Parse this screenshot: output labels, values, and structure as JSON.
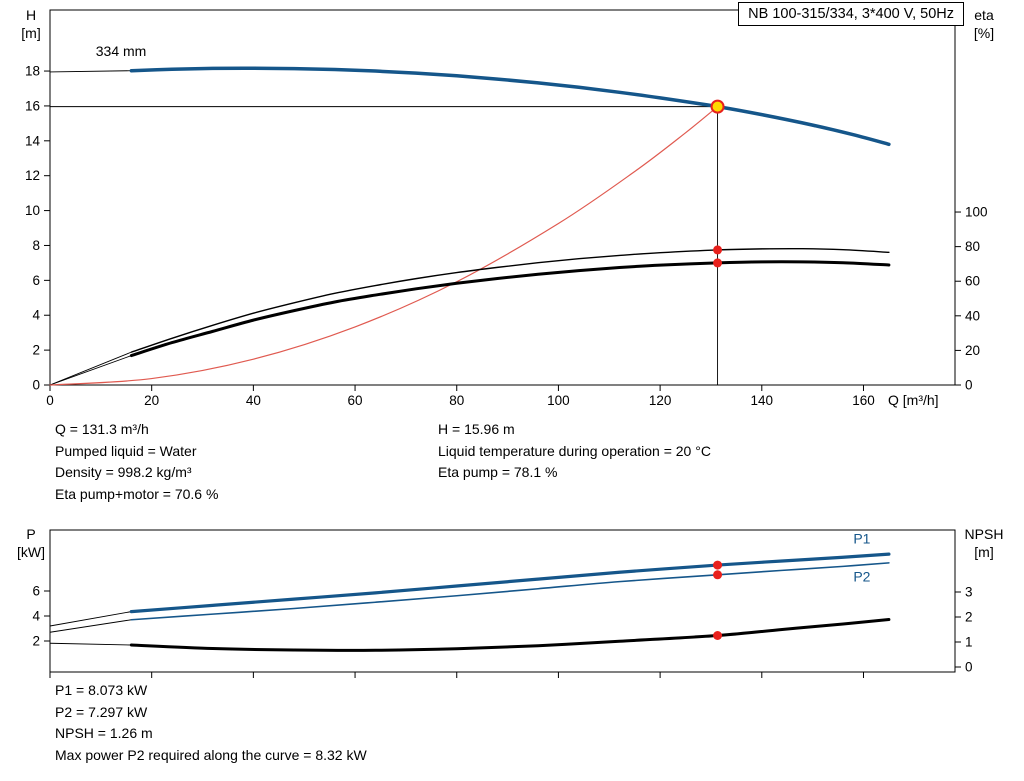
{
  "title_box": "NB 100-315/334, 3*400 V, 50Hz",
  "colors": {
    "blue": "#15568a",
    "black": "#000000",
    "red": "#e8211d",
    "light_red": "#e05a50",
    "yellow": "#ffd800",
    "frame": "#000000"
  },
  "annotations": {
    "top_left": [
      "Q = 131.3 m³/h",
      "Pumped liquid = Water",
      "Density = 998.2 kg/m³",
      "Eta pump+motor = 70.6 %"
    ],
    "top_right": [
      "H = 15.96 m",
      "Liquid temperature during operation = 20 °C",
      "Eta pump = 78.1 %"
    ],
    "bottom": [
      "P1 = 8.073 kW",
      "P2 = 7.297 kW",
      "NPSH = 1.26 m",
      "Max power P2 required along the curve = 8.32 kW"
    ]
  },
  "chart_data": [
    {
      "id": "hq-chart",
      "type": "line",
      "title": "Pump head and efficiency vs flow",
      "x_axis": {
        "min": 0,
        "max": 178,
        "ticks": [
          0,
          20,
          40,
          60,
          80,
          100,
          120,
          140,
          160
        ],
        "label": "Q [m³/h]",
        "show_tick_labels": true
      },
      "y_left": {
        "min": 0,
        "max": 21.5,
        "ticks": [
          0,
          2,
          4,
          6,
          8,
          10,
          12,
          14,
          16,
          18
        ],
        "label_lines": [
          "H",
          "[m]"
        ]
      },
      "y_right": {
        "min": 0,
        "max": 216.8,
        "ticks": [
          0,
          20,
          40,
          60,
          80,
          100
        ],
        "label_lines": [
          "eta",
          "[%]"
        ]
      },
      "series": [
        {
          "name": "head-curve-lead-in",
          "axis": "left",
          "color": "black",
          "width": 0.9,
          "points": [
            [
              0,
              17.95
            ],
            [
              16,
              18.02
            ]
          ]
        },
        {
          "name": "eta-pump-lead-in",
          "axis": "right",
          "color": "black",
          "width": 0.9,
          "points": [
            [
              0,
              0
            ],
            [
              16,
              19
            ]
          ]
        },
        {
          "name": "eta-pump-motor-lead-in",
          "axis": "right",
          "color": "black",
          "width": 0.9,
          "points": [
            [
              0,
              0
            ],
            [
              16,
              17
            ]
          ]
        },
        {
          "name": "system-curve",
          "axis": "left",
          "color": "light_red",
          "width": 1.2,
          "points": [
            [
              0,
              0
            ],
            [
              20,
              0.37
            ],
            [
              40,
              1.48
            ],
            [
              60,
              3.33
            ],
            [
              80,
              5.92
            ],
            [
              100,
              9.26
            ],
            [
              115,
              12.24
            ],
            [
              125,
              14.46
            ],
            [
              131.3,
              15.96
            ]
          ]
        },
        {
          "name": "eta-pump-curve",
          "axis": "right",
          "color": "black",
          "width": 1.4,
          "points": [
            [
              16,
              19
            ],
            [
              24,
              27
            ],
            [
              32,
              34.5
            ],
            [
              40,
              41.5
            ],
            [
              48,
              47.5
            ],
            [
              56,
              53
            ],
            [
              64,
              57.5
            ],
            [
              72,
              61.5
            ],
            [
              80,
              65
            ],
            [
              88,
              68
            ],
            [
              96,
              70.7
            ],
            [
              104,
              73
            ],
            [
              112,
              74.9
            ],
            [
              120,
              76.5
            ],
            [
              131.3,
              78.1
            ],
            [
              140,
              78.7
            ],
            [
              148,
              78.8
            ],
            [
              156,
              78.2
            ],
            [
              165,
              76.7
            ]
          ]
        },
        {
          "name": "eta-pump-motor-curve",
          "axis": "right",
          "color": "black",
          "width": 3,
          "points": [
            [
              16,
              17
            ],
            [
              24,
              24.5
            ],
            [
              32,
              31
            ],
            [
              40,
              37.5
            ],
            [
              48,
              43
            ],
            [
              56,
              48
            ],
            [
              64,
              52
            ],
            [
              72,
              55.6
            ],
            [
              80,
              58.8
            ],
            [
              88,
              61.6
            ],
            [
              96,
              64
            ],
            [
              104,
              66.1
            ],
            [
              112,
              67.9
            ],
            [
              120,
              69.3
            ],
            [
              131.3,
              70.6
            ],
            [
              140,
              71.2
            ],
            [
              148,
              71.2
            ],
            [
              156,
              70.7
            ],
            [
              165,
              69.4
            ]
          ]
        },
        {
          "name": "head-curve-334mm",
          "axis": "left",
          "color": "blue",
          "width": 3.5,
          "points": [
            [
              16,
              18.02
            ],
            [
              24,
              18.1
            ],
            [
              32,
              18.15
            ],
            [
              40,
              18.16
            ],
            [
              48,
              18.14
            ],
            [
              56,
              18.09
            ],
            [
              64,
              18.0
            ],
            [
              72,
              17.88
            ],
            [
              80,
              17.73
            ],
            [
              88,
              17.54
            ],
            [
              96,
              17.32
            ],
            [
              104,
              17.07
            ],
            [
              112,
              16.78
            ],
            [
              120,
              16.46
            ],
            [
              131.3,
              15.96
            ],
            [
              140,
              15.5
            ],
            [
              150,
              14.9
            ],
            [
              158,
              14.35
            ],
            [
              165,
              13.8
            ]
          ]
        }
      ],
      "ref_lines": [
        {
          "name": "duty-head-hline",
          "axis": "left",
          "color": "black",
          "width": 0.9,
          "from": [
            0,
            15.96
          ],
          "to": [
            131.3,
            15.96
          ]
        },
        {
          "name": "duty-flow-vline",
          "axis": "left",
          "color": "black",
          "width": 0.9,
          "from": [
            131.3,
            0
          ],
          "to": [
            131.3,
            15.96
          ]
        }
      ],
      "markers": [
        {
          "name": "eta-pump-duty-point",
          "axis": "right",
          "x": 131.3,
          "y": 78.1,
          "r": 4.5,
          "fill": "red"
        },
        {
          "name": "eta-pump-motor-duty-point",
          "axis": "right",
          "x": 131.3,
          "y": 70.6,
          "r": 4.5,
          "fill": "red"
        },
        {
          "name": "duty-point",
          "axis": "left",
          "x": 131.3,
          "y": 15.96,
          "r": 6,
          "fill": "yellow",
          "stroke": "red",
          "stroke_width": 2
        }
      ],
      "labels": [
        {
          "name": "impeller-diameter-label",
          "text": "334 mm",
          "axis": "left",
          "x": 9,
          "y": 18.85,
          "color": "black",
          "size": 14,
          "anchor": "start"
        }
      ]
    },
    {
      "id": "pq-chart",
      "type": "line",
      "title": "Power and NPSH vs flow",
      "x_axis": {
        "min": 0,
        "max": 178,
        "ticks": [
          0,
          20,
          40,
          60,
          80,
          100,
          120,
          140,
          160
        ],
        "label": "",
        "show_tick_labels": false
      },
      "y_left": {
        "min": -0.48,
        "max": 10.88,
        "ticks": [
          2,
          4,
          6
        ],
        "label_lines": [
          "P",
          "[kW]"
        ]
      },
      "y_right": {
        "min": -0.2,
        "max": 5.48,
        "ticks": [
          0,
          1,
          2,
          3
        ],
        "label_lines": [
          "NPSH",
          "[m]"
        ]
      },
      "series": [
        {
          "name": "p1-lead-in",
          "axis": "left",
          "color": "black",
          "width": 0.9,
          "points": [
            [
              0,
              3.2
            ],
            [
              16,
              4.35
            ]
          ]
        },
        {
          "name": "p2-lead-in",
          "axis": "left",
          "color": "black",
          "width": 0.9,
          "points": [
            [
              0,
              2.7
            ],
            [
              16,
              3.7
            ]
          ]
        },
        {
          "name": "npsh-lead-in",
          "axis": "right",
          "color": "black",
          "width": 0.9,
          "points": [
            [
              0,
              0.95
            ],
            [
              16,
              0.88
            ]
          ]
        },
        {
          "name": "npsh-curve",
          "axis": "right",
          "color": "black",
          "width": 3,
          "points": [
            [
              16,
              0.88
            ],
            [
              32,
              0.74
            ],
            [
              48,
              0.68
            ],
            [
              64,
              0.67
            ],
            [
              80,
              0.73
            ],
            [
              96,
              0.85
            ],
            [
              112,
              1.03
            ],
            [
              131.3,
              1.26
            ],
            [
              144,
              1.5
            ],
            [
              156,
              1.72
            ],
            [
              165,
              1.9
            ]
          ]
        },
        {
          "name": "p2-curve",
          "axis": "left",
          "color": "blue",
          "width": 1.6,
          "points": [
            [
              16,
              3.7
            ],
            [
              32,
              4.15
            ],
            [
              48,
              4.6
            ],
            [
              64,
              5.1
            ],
            [
              80,
              5.62
            ],
            [
              96,
              6.18
            ],
            [
              112,
              6.75
            ],
            [
              131.3,
              7.297
            ],
            [
              144,
              7.65
            ],
            [
              156,
              7.97
            ],
            [
              165,
              8.25
            ]
          ]
        },
        {
          "name": "p1-curve",
          "axis": "left",
          "color": "blue",
          "width": 3.2,
          "points": [
            [
              16,
              4.35
            ],
            [
              32,
              4.85
            ],
            [
              48,
              5.35
            ],
            [
              64,
              5.85
            ],
            [
              80,
              6.4
            ],
            [
              96,
              6.95
            ],
            [
              112,
              7.5
            ],
            [
              131.3,
              8.073
            ],
            [
              144,
              8.4
            ],
            [
              156,
              8.7
            ],
            [
              165,
              8.95
            ]
          ]
        }
      ],
      "ref_lines": [],
      "markers": [
        {
          "name": "p1-duty-point",
          "axis": "left",
          "x": 131.3,
          "y": 8.073,
          "r": 4.5,
          "fill": "red"
        },
        {
          "name": "p2-duty-point",
          "axis": "left",
          "x": 131.3,
          "y": 7.297,
          "r": 4.5,
          "fill": "red"
        },
        {
          "name": "npsh-duty-point",
          "axis": "right",
          "x": 131.3,
          "y": 1.26,
          "r": 4.5,
          "fill": "red"
        }
      ],
      "labels": [
        {
          "name": "p1-curve-label",
          "text": "P1",
          "axis": "left",
          "x": 158,
          "y": 9.8,
          "color": "blue",
          "size": 14,
          "anchor": "start"
        },
        {
          "name": "p2-curve-label",
          "text": "P2",
          "axis": "left",
          "x": 158,
          "y": 6.75,
          "color": "blue",
          "size": 14,
          "anchor": "start"
        }
      ]
    }
  ]
}
